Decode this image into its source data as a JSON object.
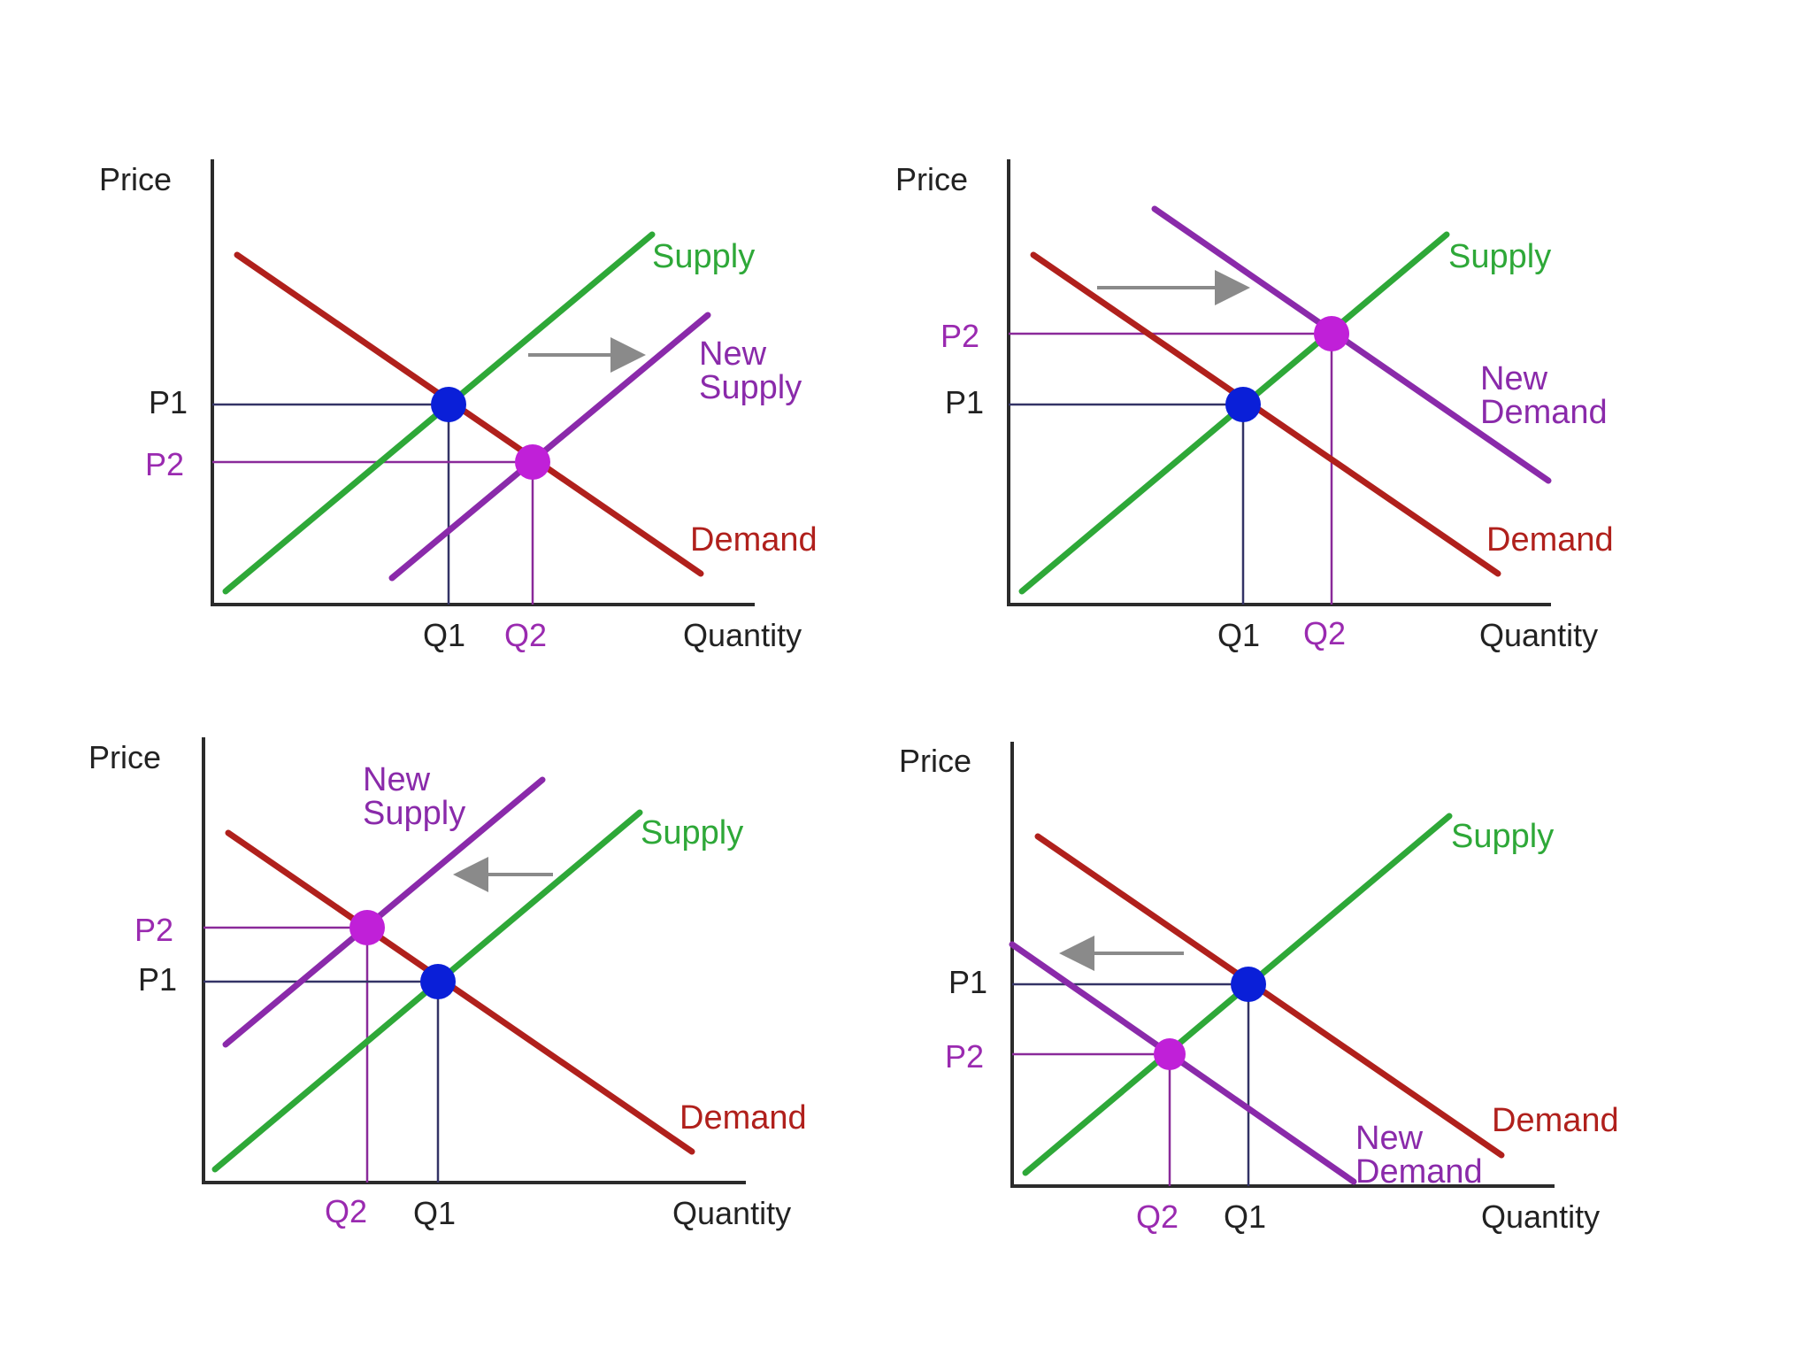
{
  "colors": {
    "supply": "#2ea838",
    "demand": "#b0201c",
    "new_curve": "#8a2aaa",
    "eq1": "#0a1fd8",
    "eq2": "#c020d8",
    "arrow": "#8a8a8a",
    "axis": "#2b2b2b"
  },
  "panels": [
    {
      "y_axis_label": "Price",
      "x_axis_label": "Quantity",
      "supply_label": "Supply",
      "demand_label": "Demand",
      "new_label_line1": "New",
      "new_label_line2": "Supply",
      "p1_label": "P1",
      "p2_label": "P2",
      "q1_label": "Q1",
      "q2_label": "Q2",
      "shift": "supply increase (rightward)"
    },
    {
      "y_axis_label": "Price",
      "x_axis_label": "Quantity",
      "supply_label": "Supply",
      "demand_label": "Demand",
      "new_label_line1": "New",
      "new_label_line2": "Demand",
      "p1_label": "P1",
      "p2_label": "P2",
      "q1_label": "Q1",
      "q2_label": "Q2",
      "shift": "demand increase (rightward)"
    },
    {
      "y_axis_label": "Price",
      "x_axis_label": "Quantity",
      "supply_label": "Supply",
      "demand_label": "Demand",
      "new_label_line1": "New",
      "new_label_line2": "Supply",
      "p1_label": "P1",
      "p2_label": "P2",
      "q1_label": "Q1",
      "q2_label": "Q2",
      "shift": "supply decrease (leftward)"
    },
    {
      "y_axis_label": "Price",
      "x_axis_label": "Quantity",
      "supply_label": "Supply",
      "demand_label": "Demand",
      "new_label_line1": "New",
      "new_label_line2": "Demand",
      "p1_label": "P1",
      "p2_label": "P2",
      "q1_label": "Q1",
      "q2_label": "Q2",
      "shift": "demand decrease (leftward)"
    }
  ]
}
